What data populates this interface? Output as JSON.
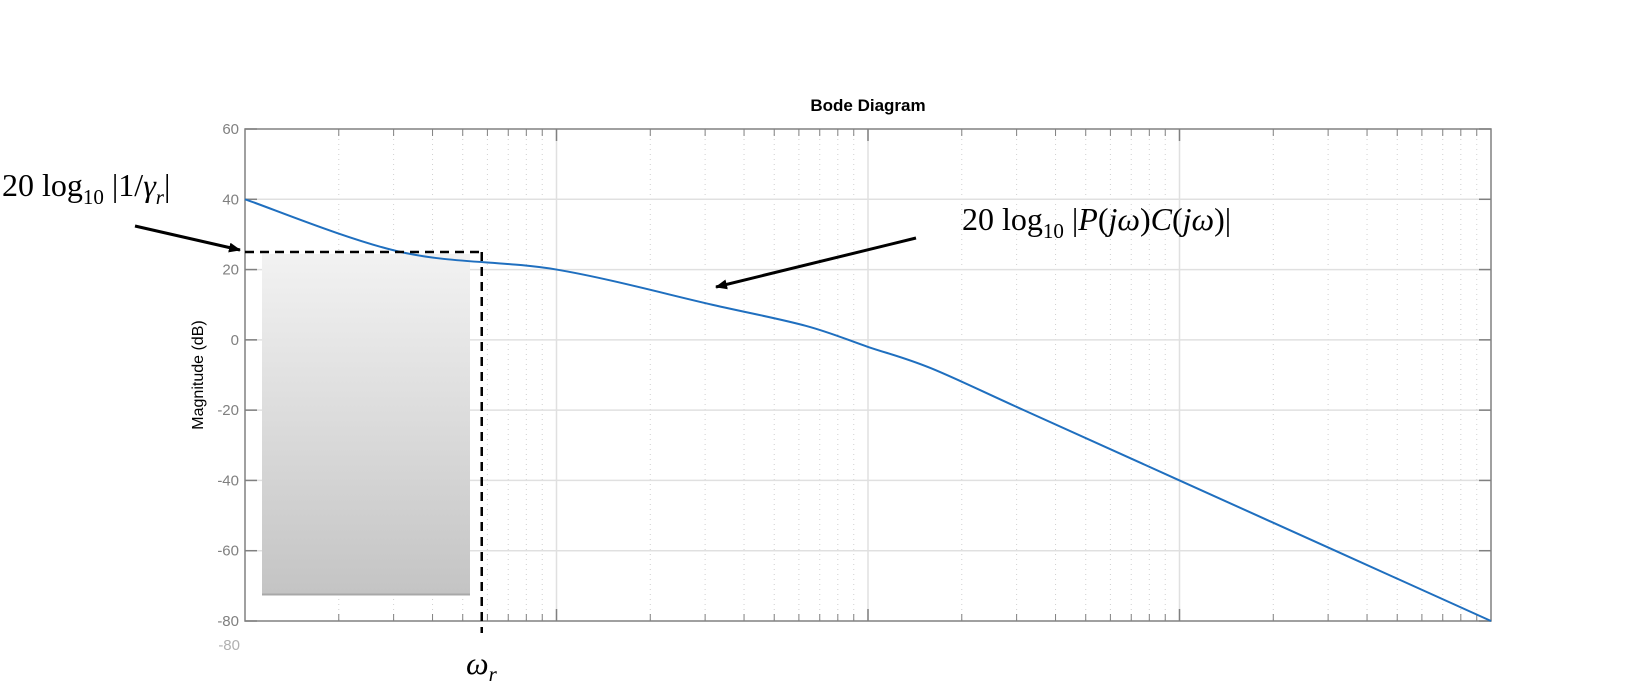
{
  "chart_data": {
    "type": "line",
    "title": "Bode Diagram",
    "ylabel": "Magnitude (dB)",
    "xlabel": "",
    "ylim": [
      -80,
      60
    ],
    "y_ticks": [
      "60",
      "40",
      "20",
      "0",
      "-20",
      "-40",
      "-60",
      "-80"
    ],
    "x_scale": "log",
    "x_decades": 4,
    "grid": true,
    "series": [
      {
        "x": [
          0,
          0.5,
          1,
          1.5,
          1.8,
          2,
          2.2,
          2.5,
          3,
          3.5,
          4
        ],
        "values": [
          40,
          25,
          20,
          10,
          4,
          -2,
          -8,
          -20,
          -40,
          -60,
          -80
        ]
      }
    ],
    "annotations": {
      "gamma_level_db": 25,
      "omega_r_decade": 0.76,
      "left_label": "20 log10 |1/γr|",
      "right_label": "20 log10 |P(jω)C(jω)|",
      "bottom_label": "ωr"
    },
    "colors": {
      "line": "#1f6fbf",
      "grid": "#e0e0e0",
      "axis": "#808080"
    }
  }
}
